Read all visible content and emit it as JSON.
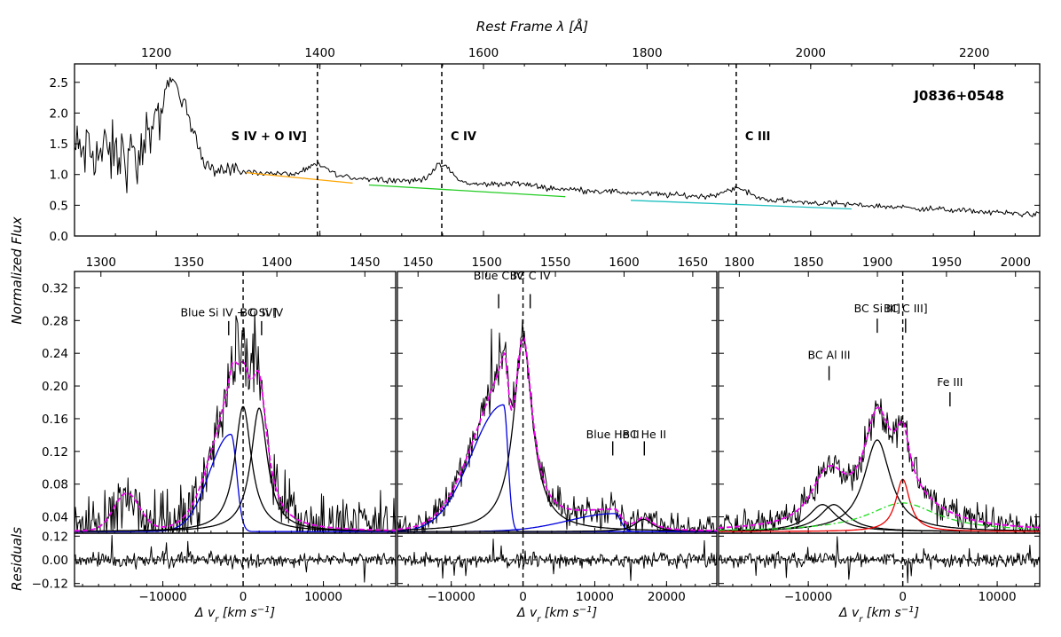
{
  "chart_data": {
    "type": "line",
    "object_name": "J0836+0548",
    "top_xlabel": "Rest Frame λ [Å]",
    "ylabel": "Normalized Flux",
    "res_ylabel": "Residuals",
    "xlabel": "Δ v_r [km s^-1]",
    "top_panel": {
      "xlim": [
        1100,
        2280
      ],
      "ylim": [
        0.0,
        2.8
      ],
      "xticks": [
        "1200",
        "1400",
        "1600",
        "1800",
        "2000",
        "2200"
      ],
      "xtick_values": [
        1200,
        1400,
        1600,
        1800,
        2000,
        2200
      ],
      "yticks": [
        "0.0",
        "0.5",
        "1.0",
        "1.5",
        "2.0",
        "2.5"
      ],
      "ytick_values": [
        0.0,
        0.5,
        1.0,
        1.5,
        2.0,
        2.5
      ],
      "lines": [
        {
          "label": "S IV + O IV]",
          "wavelength": 1397
        },
        {
          "label": "C IV",
          "wavelength": 1549
        },
        {
          "label": "C III",
          "wavelength": 1909
        }
      ],
      "continuum_segments": [
        {
          "color": "#ffa500",
          "x": [
            1310,
            1440
          ],
          "y": [
            1.03,
            0.86
          ]
        },
        {
          "color": "#22cc22",
          "x": [
            1460,
            1700
          ],
          "y": [
            0.83,
            0.64
          ]
        },
        {
          "color": "#20c0c0",
          "x": [
            1780,
            2050
          ],
          "y": [
            0.58,
            0.44
          ]
        }
      ]
    },
    "bottom_panels": [
      {
        "name": "Si IV region",
        "xlim": [
          -21000,
          19000
        ],
        "ylim": [
          0.02,
          0.34
        ],
        "top_wl_ticks": [
          "1300",
          "1350",
          "1400",
          "1450"
        ],
        "top_wl_values": [
          1300,
          1350,
          1400,
          1450
        ],
        "xticks": [
          "-10000",
          "0",
          "10000"
        ],
        "xtick_values": [
          -10000,
          0,
          10000
        ],
        "yticks": [
          "0.04",
          "0.08",
          "0.12",
          "0.16",
          "0.20",
          "0.24",
          "0.28",
          "0.32"
        ],
        "ytick_values": [
          0.04,
          0.08,
          0.12,
          0.16,
          0.2,
          0.24,
          0.28,
          0.32
        ],
        "annotations": [
          {
            "text": "Blue Si IV + O IV]",
            "x": -1800,
            "y_text": 0.285,
            "y_tick": 0.262
          },
          {
            "text": "BC Si IV",
            "x": 2300,
            "y_text": 0.285,
            "y_tick": 0.262
          }
        ],
        "components": [
          {
            "name": "blue",
            "color": "#0000dd",
            "amp": 0.119,
            "center": -1500,
            "sigma_l": 2700,
            "sigma_r": 700
          },
          {
            "name": "bc",
            "color": "#000000",
            "amp": 0.153,
            "center": 0,
            "gamma": 1250
          },
          {
            "name": "bc2",
            "color": "#000000",
            "amp": 0.151,
            "center": 2000,
            "gamma": 1250
          }
        ]
      },
      {
        "name": "C IV region",
        "xlim": [
          -17500,
          27000
        ],
        "ylim": [
          0.02,
          0.34
        ],
        "top_wl_ticks": [
          "1450",
          "1500",
          "1550",
          "1600",
          "1650"
        ],
        "top_wl_values": [
          1450,
          1500,
          1550,
          1600,
          1650
        ],
        "xticks": [
          "-10000",
          "0",
          "10000",
          "20000"
        ],
        "xtick_values": [
          -10000,
          0,
          10000,
          20000
        ],
        "yticks": [],
        "annotations": [
          {
            "text": "Blue C IV",
            "x": -3400,
            "y_text": 0.33,
            "y_tick": 0.295
          },
          {
            "text": "BC C IV",
            "x": 1000,
            "y_text": 0.33,
            "y_tick": 0.295
          },
          {
            "text": "Blue He II",
            "x": 12500,
            "y_text": 0.136,
            "y_tick": 0.115
          },
          {
            "text": "BC He II",
            "x": 16900,
            "y_text": 0.136,
            "y_tick": 0.115
          }
        ],
        "components": [
          {
            "name": "blue",
            "color": "#0000dd",
            "amp": 0.155,
            "center": -2700,
            "sigma_l": 4500,
            "sigma_r": 600
          },
          {
            "name": "bc",
            "color": "#000000",
            "amp": 0.235,
            "center": 0,
            "gamma": 1600
          },
          {
            "name": "heii_blue",
            "color": "#0000dd",
            "amp": 0.022,
            "center": 12800,
            "sigma_l": 6500,
            "sigma_r": 800
          },
          {
            "name": "heii_bc",
            "color": "#000000",
            "amp": 0.015,
            "center": 16800,
            "gamma": 1500
          }
        ]
      },
      {
        "name": "C III region",
        "xlim": [
          -19500,
          14500
        ],
        "ylim": [
          0.02,
          0.34
        ],
        "top_wl_ticks": [
          "1800",
          "1850",
          "1900",
          "1950",
          "2000"
        ],
        "top_wl_values": [
          1800,
          1850,
          1900,
          1950,
          2000
        ],
        "xticks": [
          "-10000",
          "0",
          "10000"
        ],
        "xtick_values": [
          -10000,
          0,
          10000
        ],
        "yticks": [],
        "annotations": [
          {
            "text": "BC Si III]",
            "x": -2700,
            "y_text": 0.29,
            "y_tick": 0.265
          },
          {
            "text": "BC C III]",
            "x": 300,
            "y_text": 0.29,
            "y_tick": 0.265
          },
          {
            "text": "BC Al III",
            "x": -7800,
            "y_text": 0.233,
            "y_tick": 0.207
          },
          {
            "text": "Fe III",
            "x": 5000,
            "y_text": 0.2,
            "y_tick": 0.175
          }
        ],
        "components": [
          {
            "name": "al3a",
            "color": "#000000",
            "amp": 0.033,
            "center": -8500,
            "gamma": 1800
          },
          {
            "name": "al3b",
            "color": "#000000",
            "amp": 0.033,
            "center": -7300,
            "gamma": 1800
          },
          {
            "name": "si3",
            "color": "#000000",
            "amp": 0.112,
            "center": -2700,
            "gamma": 1700
          },
          {
            "name": "c3",
            "color": "#ee0000",
            "amp": 0.064,
            "center": 0,
            "gamma": 900
          },
          {
            "name": "fe3",
            "color": "#22dd22",
            "amp": 0.035,
            "center": 0,
            "gamma": 4500
          }
        ]
      }
    ],
    "residuals": {
      "ylim": [
        -0.135,
        0.135
      ],
      "yticks": [
        "0.12",
        "0.00",
        "-0.12"
      ],
      "ytick_values": [
        0.12,
        0.0,
        -0.12
      ]
    }
  }
}
